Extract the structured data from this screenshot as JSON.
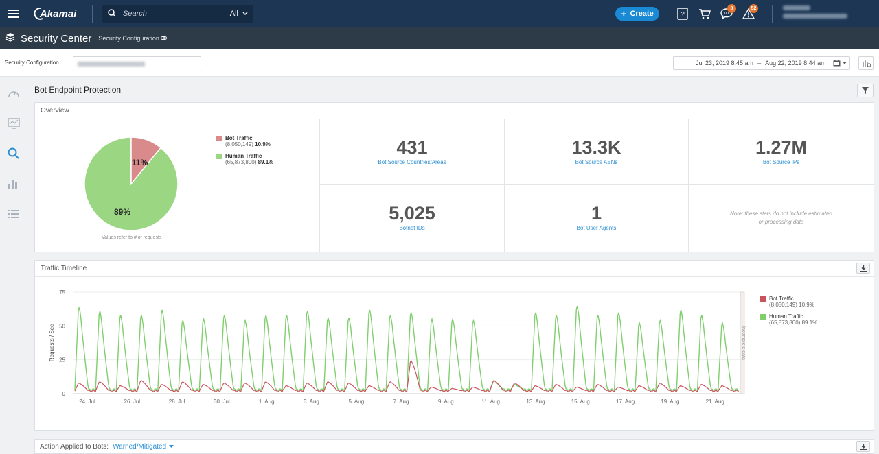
{
  "topbar": {
    "logo_text": "Akamai",
    "search_placeholder": "Search",
    "search_scope": "All",
    "create_label": "Create",
    "messages_badge": "8",
    "alerts_badge": "52"
  },
  "titlebar": {
    "title": "Security Center",
    "subtitle": "Security Configuration"
  },
  "filters": {
    "config_label": "Security Configuration",
    "date_start": "Jul 23, 2019  8:45 am",
    "date_sep": "–",
    "date_end": "Aug 22, 2019  8:44 am"
  },
  "page": {
    "title": "Bot Endpoint Protection"
  },
  "overview": {
    "heading": "Overview",
    "pie_note": "Values refer to # of requests",
    "pie_bot_pct": "11%",
    "pie_human_pct": "89%",
    "legend": [
      {
        "name": "Bot Traffic",
        "count": "(8,050,149)",
        "pct": "10.9%",
        "color": "#d98a8a"
      },
      {
        "name": "Human Traffic",
        "count": "(65,873,800)",
        "pct": "89.1%",
        "color": "#9bd682"
      }
    ],
    "stats": [
      {
        "value": "431",
        "label": "Bot Source Countries/Areas"
      },
      {
        "value": "13.3K",
        "label": "Bot Source ASNs"
      },
      {
        "value": "1.27M",
        "label": "Bot Source IPs"
      },
      {
        "value": "5,025",
        "label": "Botnet IDs"
      },
      {
        "value": "1",
        "label": "Bot User Agents"
      }
    ],
    "note": "Note: these stats do not include estimated or processing data"
  },
  "timeline": {
    "heading": "Traffic Timeline",
    "incomplete_label": "Incomplete data"
  },
  "actions": {
    "label": "Action Applied to Bots:",
    "value": "Warned/Mitigated"
  },
  "chart_data": {
    "type": "line",
    "ylabel": "Requests / Sec",
    "ylim": [
      0,
      75
    ],
    "yticks": [
      0,
      25,
      50,
      75
    ],
    "x": [
      "24. Jul",
      "26. Jul",
      "28. Jul",
      "30. Jul",
      "1. Aug",
      "3. Aug",
      "5. Aug",
      "7. Aug",
      "9. Aug",
      "11. Aug",
      "13. Aug",
      "15. Aug",
      "17. Aug",
      "19. Aug",
      "21. Aug"
    ],
    "legend_position": "right",
    "series": [
      {
        "name": "Bot Traffic",
        "color": "#c9545e",
        "count": "(8,050,149)",
        "pct": "10.9%",
        "peaks": [
          8,
          9,
          6,
          10,
          7,
          9,
          7,
          8,
          8,
          9,
          6,
          8,
          9,
          8,
          6,
          9,
          25,
          5,
          4,
          5,
          10,
          8,
          6,
          7,
          5,
          7,
          5,
          6,
          8,
          6,
          7,
          6
        ],
        "base": 2
      },
      {
        "name": "Human Traffic",
        "color": "#7fcf6d",
        "count": "(65,873,800)",
        "pct": "89.1%",
        "peaks": [
          66,
          63,
          60,
          60,
          64,
          56,
          57,
          60,
          56,
          60,
          60,
          63,
          58,
          58,
          64,
          60,
          62,
          57,
          57,
          56,
          10,
          7,
          62,
          60,
          67,
          60,
          62,
          54,
          56,
          64,
          60,
          54
        ],
        "base": 3
      }
    ]
  }
}
